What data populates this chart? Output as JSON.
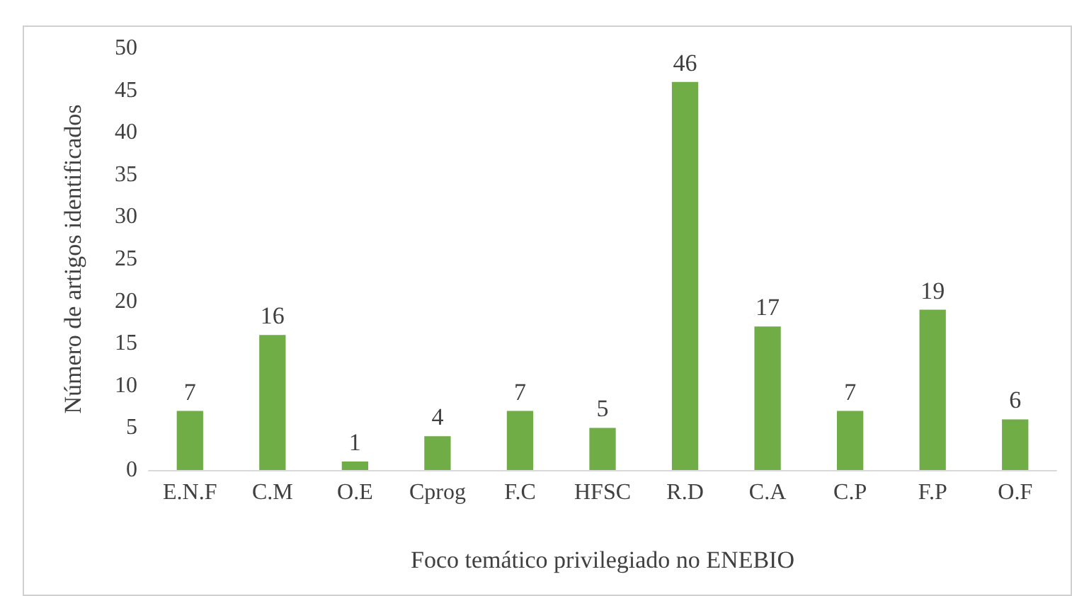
{
  "chart_data": {
    "type": "bar",
    "xlabel": "Foco temático privilegiado no ENEBIO",
    "ylabel": "Número de artigos identificados",
    "categories": [
      "E.N.F",
      "C.M",
      "O.E",
      "Cprog",
      "F.C",
      "HFSC",
      "R.D",
      "C.A",
      "C.P",
      "F.P",
      "O.F"
    ],
    "values": [
      7,
      16,
      1,
      4,
      7,
      5,
      46,
      17,
      7,
      19,
      6
    ],
    "color": "#70ad47",
    "ylim": [
      0,
      50
    ],
    "yticks": [
      0,
      5,
      10,
      15,
      20,
      25,
      30,
      35,
      40,
      45,
      50
    ],
    "grid": false,
    "data_labels": true
  }
}
